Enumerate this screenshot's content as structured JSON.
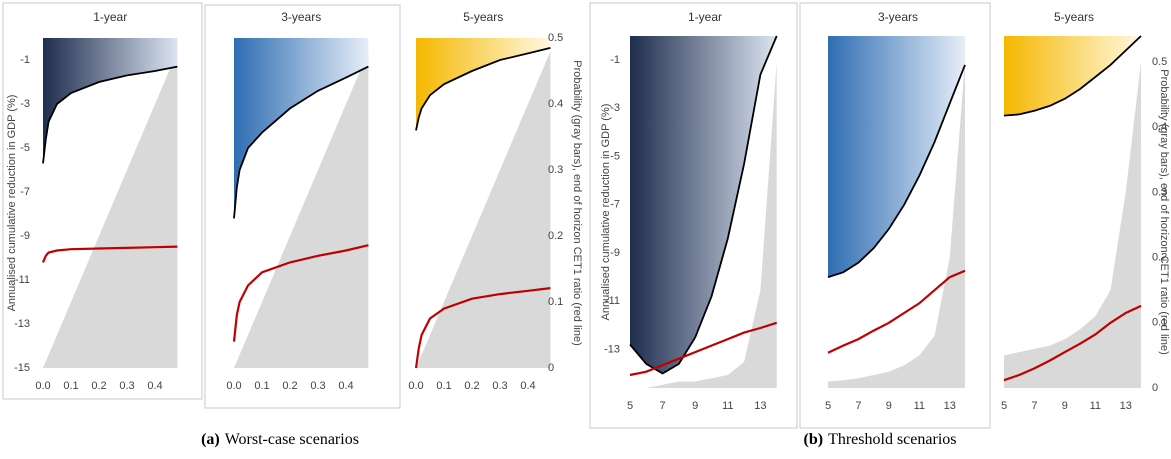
{
  "chart_data": [
    {
      "type": "line",
      "title": "1-year",
      "ylabel": "Annualised cumulative reduction in GDP (%)",
      "x": [
        {
          "value": 0,
          "label": "0.0"
        },
        0.01,
        0.02,
        0.05,
        0.1,
        0.2,
        0.3,
        0.4,
        0.48
      ],
      "xlim": [
        0,
        0.48
      ],
      "ylim": [
        -15,
        0
      ],
      "y2lim": [
        0,
        0.5
      ],
      "xticks": [
        {
          "value": 0,
          "label": "0.0"
        },
        0.1,
        0.2,
        0.3,
        0.4
      ],
      "yticks": [
        -1,
        -3,
        -5,
        -7,
        -9,
        -11,
        -13,
        -15
      ],
      "gradient": [
        "#1f2d4e",
        "#dbe4f1"
      ],
      "series": [
        {
          "color": "#d9d9d9",
          "axis": "y2",
          "fill": true,
          "values": [
            0,
            0.01,
            0.02,
            0.05,
            0.1,
            0.2,
            0.3,
            0.4,
            0.48
          ]
        },
        {
          "color": "#000000",
          "values": [
            -5.7,
            -4.6,
            -3.8,
            -3.0,
            -2.5,
            -2.0,
            -1.7,
            -1.5,
            -1.3
          ]
        },
        {
          "color": "#c00000",
          "axis": "y2",
          "values": [
            0.16,
            0.17,
            0.175,
            0.178,
            0.18,
            0.181,
            0.182,
            0.183,
            0.184
          ]
        }
      ]
    },
    {
      "type": "line",
      "title": "3-years",
      "x": [
        {
          "value": 0,
          "label": "0.0"
        },
        0.01,
        0.02,
        0.05,
        0.1,
        0.2,
        0.3,
        0.4,
        0.48
      ],
      "xlim": [
        0,
        0.48
      ],
      "ylim": [
        -15,
        0
      ],
      "y2lim": [
        0,
        0.5
      ],
      "xticks": [
        {
          "value": 0,
          "label": "0.0"
        },
        0.1,
        0.2,
        0.3,
        0.4
      ],
      "gradient": [
        "#2f6db3",
        "#e6eef8"
      ],
      "series": [
        {
          "color": "#d9d9d9",
          "axis": "y2",
          "fill": true,
          "values": [
            0,
            0.01,
            0.02,
            0.05,
            0.1,
            0.2,
            0.3,
            0.4,
            0.48
          ]
        },
        {
          "color": "#000000",
          "values": [
            -8.2,
            -6.8,
            -6.0,
            -5.0,
            -4.3,
            -3.2,
            -2.4,
            -1.8,
            -1.3
          ]
        },
        {
          "color": "#c00000",
          "axis": "y2",
          "values": [
            0.04,
            0.08,
            0.1,
            0.125,
            0.145,
            0.16,
            0.17,
            0.178,
            0.186
          ]
        }
      ]
    },
    {
      "type": "line",
      "title": "5-years",
      "y2label": "Probability (gray bars), end of horizon CET1 ratio (red line)",
      "x": [
        {
          "value": 0,
          "label": "0.0"
        },
        0.01,
        0.02,
        0.05,
        0.1,
        0.2,
        0.3,
        0.4,
        0.48
      ],
      "xlim": [
        0,
        0.48
      ],
      "ylim": [
        -15,
        0
      ],
      "y2lim": [
        0,
        0.5
      ],
      "xticks": [
        {
          "value": 0,
          "label": "0.0"
        },
        0.1,
        0.2,
        0.3,
        0.4
      ],
      "y2ticks": [
        0,
        0.1,
        0.2,
        0.3,
        0.4,
        0.5
      ],
      "gradient": [
        "#f5b800",
        "#fff8e0"
      ],
      "series": [
        {
          "color": "#d9d9d9",
          "axis": "y2",
          "fill": true,
          "values": [
            0,
            0.01,
            0.02,
            0.05,
            0.1,
            0.2,
            0.3,
            0.4,
            0.48
          ]
        },
        {
          "color": "#000000",
          "values": [
            -4.2,
            -3.6,
            -3.2,
            -2.6,
            -2.1,
            -1.5,
            -1.0,
            -0.7,
            -0.45
          ]
        },
        {
          "color": "#c00000",
          "axis": "y2",
          "values": [
            0,
            0.03,
            0.05,
            0.075,
            0.09,
            0.105,
            0.112,
            0.117,
            0.121
          ]
        }
      ]
    },
    {
      "type": "line",
      "title": "1-year",
      "ylabel": "Annualised cumulative reduction in GDP (%)",
      "x": [
        5,
        6,
        7,
        8,
        9,
        10,
        11,
        12,
        13,
        14
      ],
      "xlim": [
        5,
        14.2
      ],
      "ylim": [
        -14.6,
        0
      ],
      "y2lim": [
        0,
        0.54
      ],
      "xticks": [
        5,
        7,
        9,
        11,
        13
      ],
      "yticks": [
        -1,
        -3,
        -5,
        -7,
        -9,
        -11,
        -13
      ],
      "gradient": [
        "#1f2d4e",
        "#dbe4f1"
      ],
      "series": [
        {
          "color": "#d9d9d9",
          "axis": "y2",
          "fill": true,
          "values": [
            0,
            0,
            0.005,
            0.01,
            0.01,
            0.015,
            0.02,
            0.04,
            0.15,
            0.5
          ]
        },
        {
          "color": "#000000",
          "values": [
            -12.8,
            -13.6,
            -14.0,
            -13.6,
            -12.5,
            -10.8,
            -8.4,
            -5.3,
            -1.6,
            0
          ]
        },
        {
          "color": "#c00000",
          "axis": "y2",
          "values": [
            0.02,
            0.025,
            0.035,
            0.045,
            0.055,
            0.065,
            0.075,
            0.085,
            0.092,
            0.1
          ]
        }
      ]
    },
    {
      "type": "line",
      "title": "3-years",
      "x": [
        5,
        6,
        7,
        8,
        9,
        10,
        11,
        12,
        13,
        14
      ],
      "xlim": [
        5,
        14.2
      ],
      "ylim": [
        -14.6,
        0
      ],
      "y2lim": [
        0,
        0.54
      ],
      "xticks": [
        5,
        7,
        9,
        11,
        13
      ],
      "gradient": [
        "#2f6db3",
        "#e6eef8"
      ],
      "series": [
        {
          "color": "#d9d9d9",
          "axis": "y2",
          "fill": true,
          "values": [
            0.01,
            0.012,
            0.015,
            0.02,
            0.025,
            0.035,
            0.05,
            0.08,
            0.2,
            0.5
          ]
        },
        {
          "color": "#000000",
          "values": [
            -10.0,
            -9.8,
            -9.4,
            -8.8,
            -8.0,
            -7.0,
            -5.8,
            -4.4,
            -2.8,
            -1.2
          ]
        },
        {
          "color": "#c00000",
          "axis": "y2",
          "values": [
            0.054,
            0.065,
            0.075,
            0.088,
            0.1,
            0.115,
            0.13,
            0.15,
            0.17,
            0.18
          ]
        }
      ]
    },
    {
      "type": "line",
      "title": "5-years",
      "y2label": "Probability (gray bars), end of horizon CET1 ratio (red line)",
      "x": [
        5,
        6,
        7,
        8,
        9,
        10,
        11,
        12,
        13,
        14
      ],
      "xlim": [
        5,
        14.2
      ],
      "ylim": [
        -14.6,
        0
      ],
      "y2lim": [
        0,
        0.54
      ],
      "xticks": [
        5,
        7,
        9,
        11,
        13
      ],
      "y2ticks": [
        0,
        0.1,
        0.2,
        0.3,
        0.4,
        0.5
      ],
      "gradient": [
        "#f5b800",
        "#fff8e0"
      ],
      "series": [
        {
          "color": "#d9d9d9",
          "axis": "y2",
          "fill": true,
          "values": [
            0.05,
            0.055,
            0.06,
            0.065,
            0.075,
            0.09,
            0.11,
            0.15,
            0.3,
            0.5
          ]
        },
        {
          "color": "#000000",
          "values": [
            -3.3,
            -3.25,
            -3.1,
            -2.9,
            -2.6,
            -2.2,
            -1.7,
            -1.2,
            -0.6,
            0
          ]
        },
        {
          "color": "#c00000",
          "axis": "y2",
          "values": [
            0.012,
            0.02,
            0.03,
            0.042,
            0.055,
            0.068,
            0.082,
            0.1,
            0.115,
            0.126
          ]
        }
      ]
    }
  ],
  "captions": [
    {
      "label": "(a)",
      "text": "Worst-case scenarios"
    },
    {
      "label": "(b)",
      "text": "Threshold scenarios"
    }
  ]
}
